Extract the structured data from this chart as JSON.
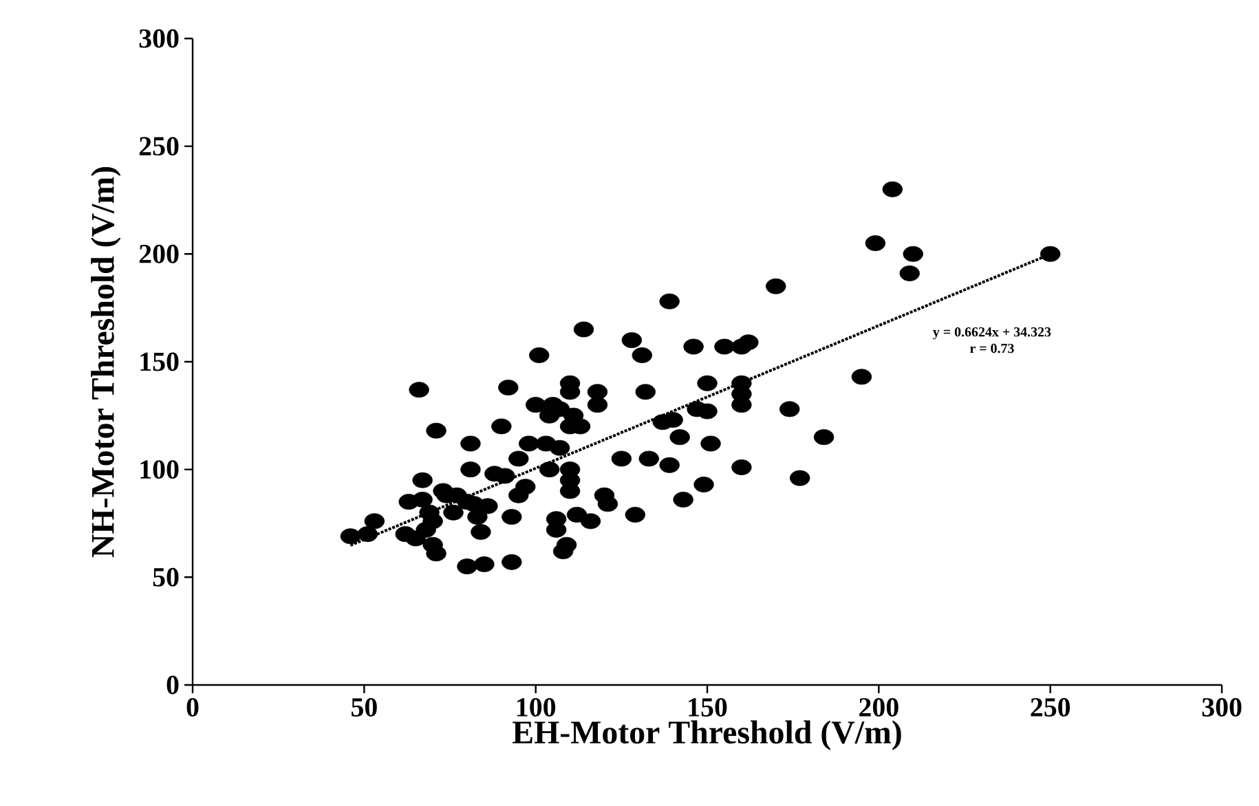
{
  "chart_data": {
    "type": "scatter",
    "xlabel": "EH-Motor Threshold (V/m)",
    "ylabel": "NH-Motor Threshold (V/m)",
    "xlim": [
      0,
      300
    ],
    "ylim": [
      0,
      300
    ],
    "xticks": [
      0,
      50,
      100,
      150,
      200,
      250,
      300
    ],
    "yticks": [
      0,
      50,
      100,
      150,
      200,
      250,
      300
    ],
    "marker": "circle",
    "grid": false,
    "annotations": [
      "y = 0.6624x + 34.323",
      "r = 0.73"
    ],
    "series": [
      {
        "color": "#000000",
        "x": [
          46,
          51,
          53,
          62,
          63,
          65,
          66,
          67,
          67,
          68,
          69,
          70,
          70,
          71,
          71,
          73,
          74,
          76,
          77,
          80,
          81,
          81,
          80,
          82,
          83,
          84,
          85,
          86,
          88,
          90,
          91,
          92,
          93,
          93,
          95,
          95,
          97,
          98,
          100,
          101,
          103,
          104,
          104,
          105,
          106,
          106,
          107,
          107,
          108,
          109,
          110,
          110,
          110,
          110,
          110,
          110,
          111,
          112,
          113,
          114,
          116,
          118,
          118,
          120,
          121,
          125,
          128,
          129,
          131,
          132,
          133,
          137,
          139,
          139,
          140,
          142,
          143,
          146,
          147,
          149,
          150,
          150,
          151,
          155,
          160,
          160,
          160,
          160,
          160,
          162,
          170,
          174,
          177,
          184,
          195,
          199,
          204,
          209,
          210,
          250
        ],
        "values": [
          69,
          70,
          76,
          70,
          85,
          68,
          137,
          95,
          86,
          72,
          80,
          76,
          65,
          118,
          61,
          90,
          88,
          80,
          88,
          55,
          100,
          112,
          85,
          84,
          78,
          71,
          56,
          83,
          98,
          120,
          97,
          138,
          78,
          57,
          105,
          88,
          92,
          112,
          130,
          153,
          112,
          100,
          125,
          130,
          72,
          77,
          110,
          128,
          62,
          65,
          140,
          136,
          120,
          100,
          95,
          90,
          125,
          79,
          120,
          165,
          76,
          130,
          136,
          88,
          84,
          105,
          160,
          79,
          153,
          136,
          105,
          122,
          102,
          178,
          123,
          115,
          86,
          157,
          128,
          93,
          127,
          140,
          112,
          157,
          140,
          135,
          130,
          157,
          101,
          159,
          185,
          128,
          96,
          115,
          143,
          205,
          230,
          191,
          200,
          200
        ]
      },
      {
        "type": "line",
        "color": "#000000",
        "line_style": "dotted",
        "marker": "none",
        "x": [
          46,
          250
        ],
        "values": [
          64.8,
          199.9
        ]
      }
    ]
  }
}
